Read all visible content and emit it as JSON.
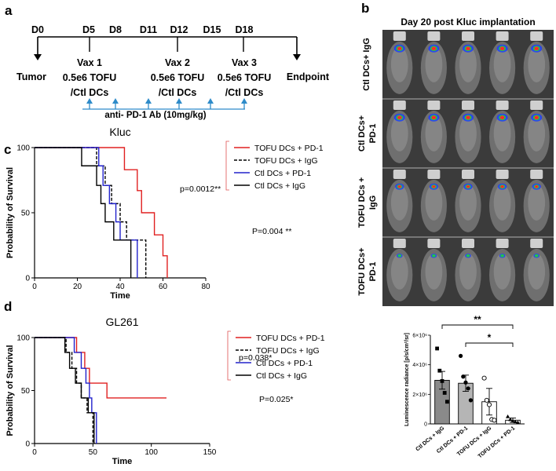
{
  "panels": {
    "a": "a",
    "b": "b",
    "c": "c",
    "d": "d"
  },
  "timeline": {
    "days": [
      "D0",
      "D5",
      "D8",
      "D11",
      "D12",
      "D15",
      "D18"
    ],
    "start_label": "Tumor",
    "end_label": "Endpoint",
    "vaccines": [
      {
        "name": "Vax 1",
        "dose": "0.5e6 TOFU",
        "type": "/Ctl DCs"
      },
      {
        "name": "Vax 2",
        "dose": "0.5e6 TOFU",
        "type": "/Ctl DCs"
      },
      {
        "name": "Vax 3",
        "dose": "0.5e6 TOFU",
        "type": "/Ctl DCs"
      }
    ],
    "antibody_label": "anti- PD-1 Ab (10mg/kg)",
    "arrow_color": "#2e8bc9"
  },
  "imaging": {
    "title": "Day 20 post Kluc implantation",
    "rows": [
      {
        "line1": "Ctl DCs+ IgG",
        "line2": ""
      },
      {
        "line1": "Ctl DCs+",
        "line2": "PD-1"
      },
      {
        "line1": "TOFU DCs +",
        "line2": "IgG"
      },
      {
        "line1": "TOFU DCs+",
        "line2": "PD-1"
      }
    ],
    "signal_level_per_row": [
      3,
      3,
      2,
      1
    ]
  },
  "chart_data": [
    {
      "id": "kluc",
      "type": "line",
      "subtype": "kaplan-meier",
      "title": "Kluc",
      "xlabel": "Time",
      "ylabel": "Probability of Survival",
      "xlim": [
        0,
        80
      ],
      "ylim": [
        0,
        100
      ],
      "xticks": [
        0,
        20,
        40,
        60,
        80
      ],
      "yticks": [
        0,
        50,
        100
      ],
      "xtick_labels": [
        "0",
        "20",
        "40",
        "60",
        "80"
      ],
      "ytick_labels": [
        "0",
        "50",
        "100"
      ],
      "series": [
        {
          "name": "TOFU DCs + PD-1",
          "color": "#e02020",
          "dash": "",
          "x": [
            0,
            42,
            48,
            50,
            56,
            60,
            62
          ],
          "y": [
            100,
            83,
            67,
            50,
            33,
            17,
            0
          ]
        },
        {
          "name": "TOFU DCs + IgG",
          "color": "#000000",
          "dash": "4,2",
          "x": [
            0,
            29,
            33,
            36,
            40,
            43,
            52
          ],
          "y": [
            100,
            86,
            71,
            57,
            43,
            29,
            0
          ]
        },
        {
          "name": "Ctl DCs + PD-1",
          "color": "#2222cc",
          "dash": "",
          "x": [
            0,
            30,
            32,
            35,
            38,
            40,
            48
          ],
          "y": [
            100,
            86,
            71,
            57,
            43,
            29,
            0
          ]
        },
        {
          "name": "Ctl DCs + IgG",
          "color": "#000000",
          "dash": "",
          "x": [
            0,
            22,
            29,
            31,
            33,
            37,
            45
          ],
          "y": [
            100,
            86,
            71,
            57,
            43,
            29,
            0
          ]
        }
      ],
      "pvalue_top": "p=0.0012**",
      "pvalue_bottom": "P=0.004 **"
    },
    {
      "id": "gl261",
      "type": "line",
      "subtype": "kaplan-meier",
      "title": "GL261",
      "xlabel": "Time",
      "ylabel": "Probability of Survival",
      "xlim": [
        0,
        150
      ],
      "ylim": [
        0,
        100
      ],
      "xticks": [
        0,
        50,
        100,
        150
      ],
      "yticks": [
        0,
        50,
        100
      ],
      "xtick_labels": [
        "0",
        "50",
        "100",
        "150"
      ],
      "ytick_labels": [
        "0",
        "50",
        "100"
      ],
      "series": [
        {
          "name": "TOFU DCs + PD-1",
          "color": "#e02020",
          "dash": "",
          "x": [
            0,
            36,
            43,
            47,
            62,
            113
          ],
          "y": [
            100,
            86,
            71,
            57,
            43,
            43
          ]
        },
        {
          "name": "TOFU DCs + IgG",
          "color": "#000000",
          "dash": "4,2",
          "x": [
            0,
            27,
            32,
            36,
            40,
            45,
            50
          ],
          "y": [
            100,
            86,
            71,
            57,
            43,
            29,
            0
          ]
        },
        {
          "name": "Ctl DCs + PD-1",
          "color": "#2222cc",
          "dash": "",
          "x": [
            0,
            34,
            40,
            44,
            47,
            49,
            53
          ],
          "y": [
            100,
            86,
            71,
            57,
            43,
            29,
            0
          ]
        },
        {
          "name": "Ctl DCs + IgG",
          "color": "#000000",
          "dash": "",
          "x": [
            0,
            26,
            30,
            35,
            40,
            46,
            51
          ],
          "y": [
            100,
            86,
            71,
            57,
            43,
            29,
            0
          ]
        }
      ],
      "pvalue_top": "p=0.038*",
      "pvalue_bottom": "P=0.025*"
    },
    {
      "id": "luminescence",
      "type": "bar",
      "ylabel": "Luminescence radiance [p/s/cm²/sr]",
      "ylim": [
        0,
        6000000
      ],
      "yticks": [
        0,
        2000000,
        4000000,
        6000000
      ],
      "ytick_labels": [
        "0",
        "2×10⁶",
        "4×10⁶",
        "6×10⁶"
      ],
      "categories": [
        "Ctl DCs + IgG",
        "Ctl DCs + PD-1",
        "TOFU DCs + IgG",
        "TOFU DCs + PD-1"
      ],
      "values": [
        2950000,
        2750000,
        1500000,
        250000
      ],
      "errors": [
        600000,
        550000,
        900000,
        150000
      ],
      "bar_colors": [
        "#8a8a8a",
        "#b5b5b5",
        "#ffffff",
        "#ffffff"
      ],
      "points": [
        [
          5100000,
          3600000,
          2900000,
          2100000,
          1500000
        ],
        [
          4600000,
          3200000,
          2800000,
          2400000,
          1600000
        ],
        [
          3100000,
          1600000,
          1300000,
          300000,
          250000
        ],
        [
          500000,
          300000,
          200000,
          150000,
          100000
        ]
      ],
      "significance": [
        {
          "from": 0,
          "to": 3,
          "label": "**"
        },
        {
          "from": 1,
          "to": 3,
          "label": "*"
        }
      ]
    }
  ]
}
